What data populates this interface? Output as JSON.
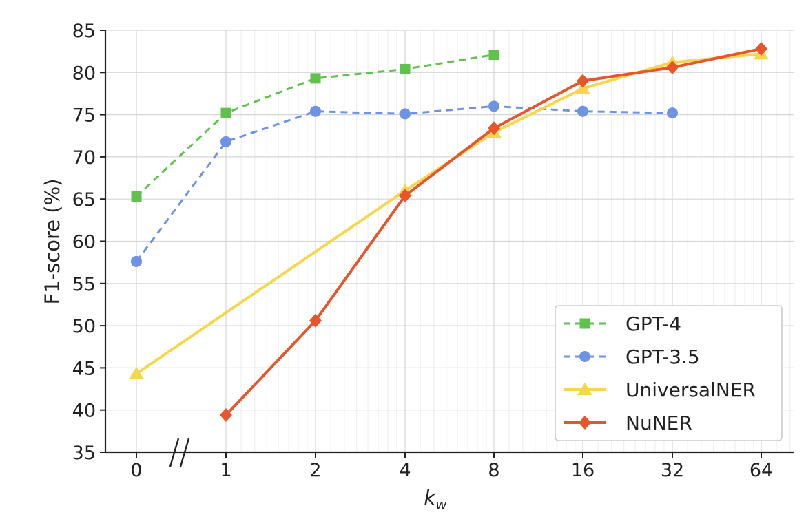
{
  "chart_data": {
    "type": "line",
    "xlabel_main": "k",
    "xlabel_sub": "w",
    "ylabel": "F1-score (%)",
    "categories": [
      "0",
      "1",
      "2",
      "4",
      "8",
      "16",
      "32",
      "64"
    ],
    "ylim": [
      35,
      85
    ],
    "yticks": [
      "35",
      "40",
      "45",
      "50",
      "55",
      "60",
      "65",
      "70",
      "75",
      "80",
      "85"
    ],
    "x_axis_scale": "log2 with axis break between 0 and 1",
    "grid": true,
    "legend_position": "lower-right",
    "series": [
      {
        "name": "GPT-4",
        "style": "dashed",
        "marker": "square",
        "color": "#5ec24c",
        "x": [
          0,
          1,
          2,
          4,
          8
        ],
        "values": [
          65.3,
          75.2,
          79.3,
          80.4,
          82.1
        ]
      },
      {
        "name": "GPT-3.5",
        "style": "dashed",
        "marker": "circle",
        "color": "#6f93e4",
        "x": [
          0,
          1,
          2,
          4,
          8,
          16,
          32
        ],
        "values": [
          57.6,
          71.8,
          75.4,
          75.1,
          76.0,
          75.4,
          75.2
        ]
      },
      {
        "name": "UniversalNER",
        "style": "solid",
        "marker": "triangle",
        "color": "#f7d64a",
        "x": [
          0,
          4,
          8,
          16,
          32,
          64
        ],
        "values": [
          44.3,
          66.0,
          72.9,
          78.1,
          81.2,
          82.2
        ]
      },
      {
        "name": "NuNER",
        "style": "solid",
        "marker": "diamond",
        "color": "#e9552a",
        "x": [
          1,
          2,
          4,
          8,
          16,
          32,
          64
        ],
        "values": [
          39.4,
          50.6,
          65.4,
          73.4,
          79.0,
          80.6,
          82.8
        ]
      }
    ]
  }
}
